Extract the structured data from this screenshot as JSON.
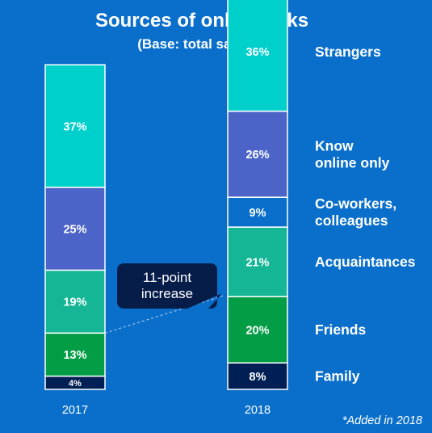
{
  "chart_data": {
    "type": "bar",
    "stacked": true,
    "title": "Sources of online risks",
    "subtitle": "(Base: total sample)",
    "categories": [
      "2017",
      "2018"
    ],
    "series": [
      {
        "name": "Family",
        "values": [
          4,
          8
        ],
        "color": "#001f54"
      },
      {
        "name": "Friends",
        "values": [
          13,
          20
        ],
        "color": "#039d46"
      },
      {
        "name": "Acquaintances",
        "values": [
          19,
          21
        ],
        "color": "#14b696"
      },
      {
        "name": "Co-workers, colleagues",
        "values": [
          null,
          9
        ],
        "color": "#0a6fca"
      },
      {
        "name": "Know online only",
        "values": [
          25,
          26
        ],
        "color": "#4c64c8"
      },
      {
        "name": "Strangers",
        "values": [
          37,
          36
        ],
        "color": "#00d0cc"
      }
    ],
    "legend_placement": "right",
    "legend_labels": [
      {
        "series": "Strangers",
        "lines": [
          "Strangers"
        ]
      },
      {
        "series": "Know online only",
        "lines": [
          "Know",
          "online only"
        ]
      },
      {
        "series": "Co-workers, colleagues",
        "lines": [
          "Co-workers,",
          "colleagues"
        ]
      },
      {
        "series": "Acquaintances",
        "lines": [
          "Acquaintances"
        ]
      },
      {
        "series": "Friends",
        "lines": [
          "Friends"
        ]
      },
      {
        "series": "Family",
        "lines": [
          "Family"
        ]
      }
    ],
    "annotation": {
      "text_lines": [
        "11-point",
        "increase"
      ],
      "from_category": "2017",
      "to_category": "2018",
      "level": 17
    },
    "footnote": "*Added in 2018",
    "grid": false,
    "colors": {
      "background": "#0a6fca",
      "bar_border": "#ffffff",
      "callout_fill": "#061d4a",
      "text": "#ffffff"
    }
  }
}
